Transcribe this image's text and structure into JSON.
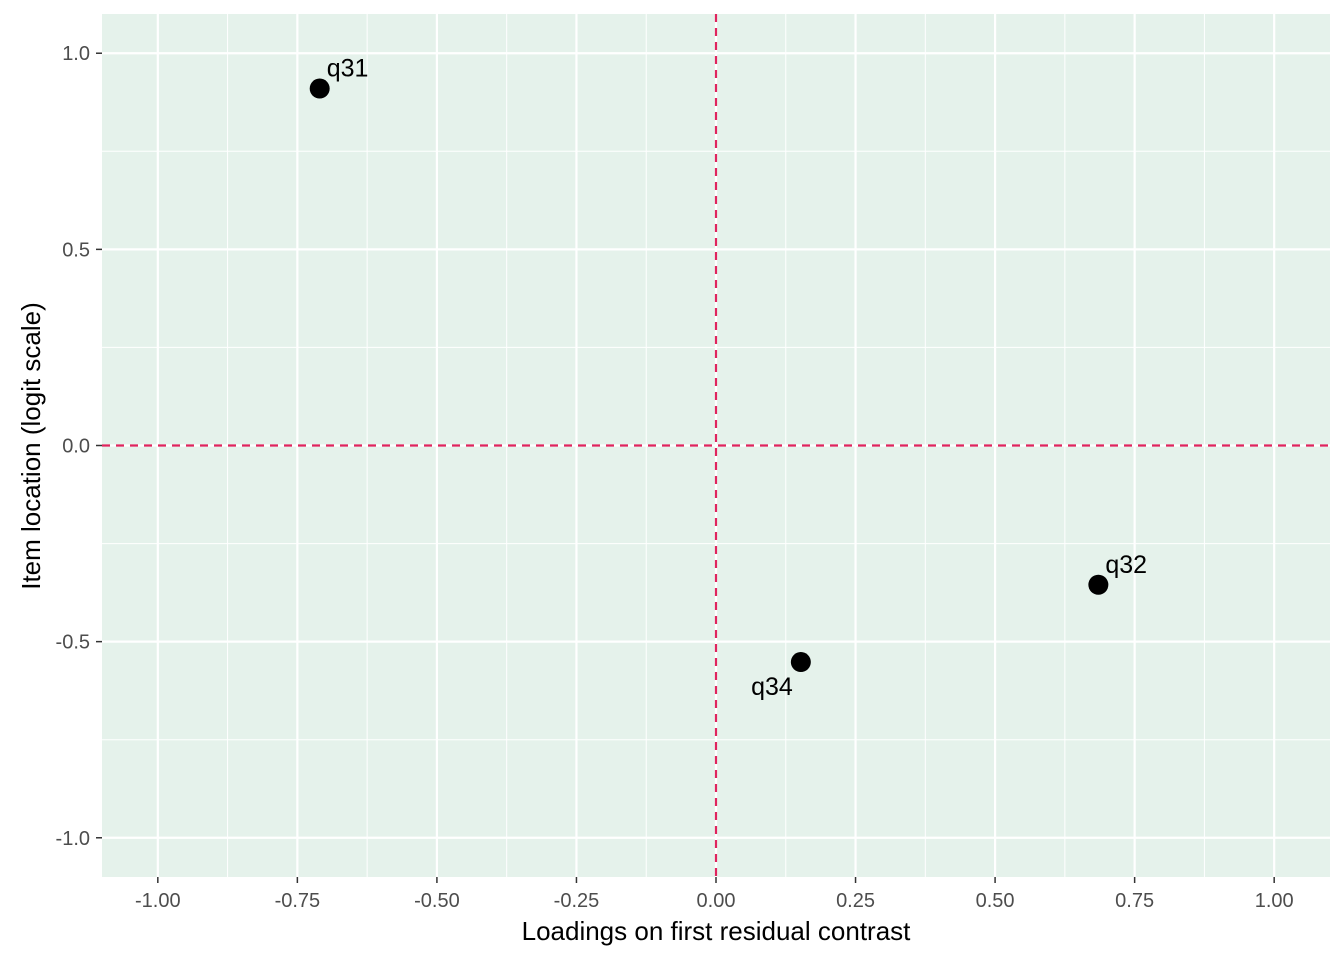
{
  "chart_data": {
    "type": "scatter",
    "title": "",
    "xlabel": "Loadings on first residual contrast",
    "ylabel": "Item location (logit scale)",
    "xlim": [
      -1.1,
      1.1
    ],
    "ylim": [
      -1.1,
      1.1
    ],
    "x_ticks": [
      -1.0,
      -0.75,
      -0.5,
      -0.25,
      0.0,
      0.25,
      0.5,
      0.75,
      1.0
    ],
    "x_tick_labels": [
      "-1.00",
      "-0.75",
      "-0.50",
      "-0.25",
      "0.00",
      "0.25",
      "0.50",
      "0.75",
      "1.00"
    ],
    "y_ticks": [
      -1.0,
      -0.5,
      0.0,
      0.5,
      1.0
    ],
    "y_tick_labels": [
      "-1.0",
      "-0.5",
      "0.0",
      "0.5",
      "1.0"
    ],
    "grid": true,
    "reference_lines": {
      "x": 0.0,
      "y": 0.0,
      "style": "dashed",
      "color": "#e0245e"
    },
    "points": [
      {
        "label": "q31",
        "x": -0.71,
        "y": 0.91,
        "label_position": "top-right"
      },
      {
        "label": "q32",
        "x": 0.685,
        "y": -0.355,
        "label_position": "top-right"
      },
      {
        "label": "q34",
        "x": 0.152,
        "y": -0.552,
        "label_position": "bottom-left"
      }
    ],
    "colors": {
      "panel_background": "#e5f2eb",
      "grid": "#ffffff",
      "points": "#000000",
      "reference_line": "#e0245e"
    }
  }
}
